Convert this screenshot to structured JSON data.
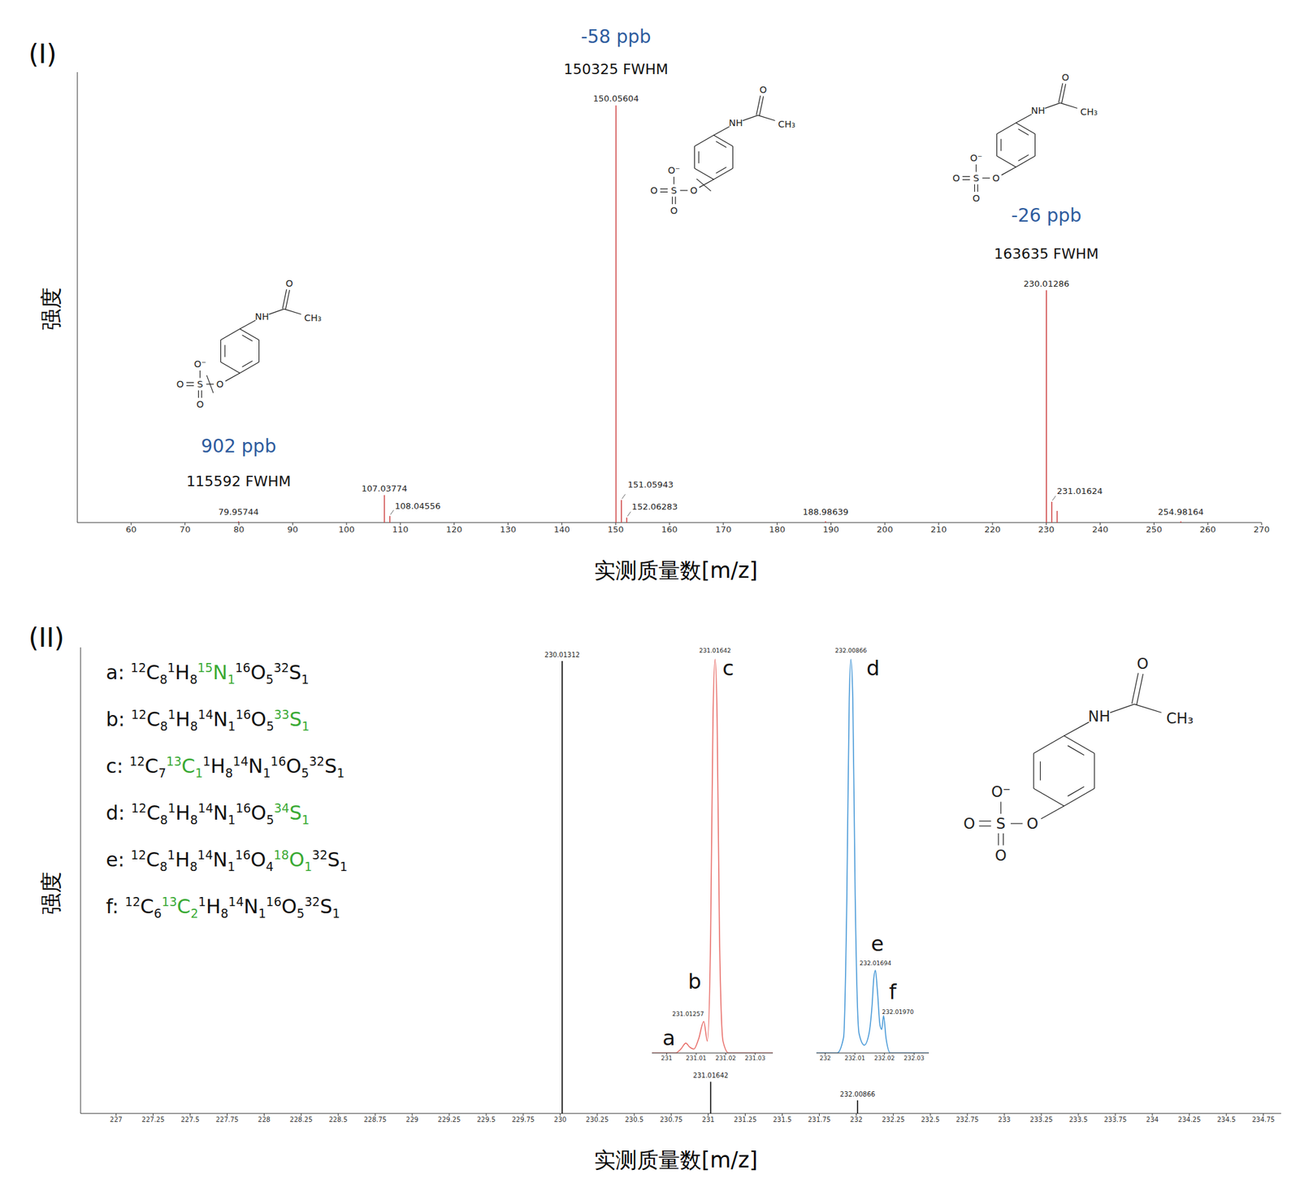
{
  "chart_data": [
    {
      "panel": "(I)",
      "type": "stick",
      "x_label": "实测质量数[m/z]",
      "y_label": "强度",
      "xlim": [
        50,
        270
      ],
      "xticks": [
        60,
        70,
        80,
        90,
        100,
        110,
        120,
        130,
        140,
        150,
        160,
        170,
        180,
        190,
        200,
        210,
        220,
        230,
        240,
        250,
        260,
        270
      ],
      "ylim": [
        0,
        108
      ],
      "tick_labels": "x",
      "color": "#d04a4a",
      "data_labels": true,
      "x": [
        79.95744,
        107.03774,
        108.04556,
        150.05604,
        151.05943,
        152.06283,
        188.98639,
        230.01286,
        231.01624,
        232.009,
        254.98164
      ],
      "values": [
        0.3,
        6.6,
        1.6,
        100,
        5.4,
        1.2,
        0.3,
        55.7,
        5.0,
        2.8,
        0.3
      ],
      "labels": [
        "79.95744",
        "107.03774",
        "108.04556",
        "150.05604",
        "151.05943",
        "152.06283",
        "188.98639",
        "230.01286",
        "231.01624",
        null,
        "254.98164"
      ],
      "annotations": [
        {
          "x": 150.05604,
          "error": "-58 ppb",
          "resolution": "150325 FWHM"
        },
        {
          "x": 230.01286,
          "error": "-26 ppb",
          "resolution": "163635 FWHM"
        },
        {
          "x": 79.95744,
          "error": "902 ppb",
          "resolution": "115592 FWHM"
        }
      ]
    },
    {
      "panel": "(II)",
      "type": "stick",
      "x_label": "实测质量数[m/z]",
      "y_label": "强度",
      "xlim": [
        226.76,
        234.87
      ],
      "xticks": [
        227,
        227.25,
        227.5,
        227.75,
        228,
        228.25,
        228.5,
        228.75,
        229,
        229.25,
        229.5,
        229.75,
        230,
        230.25,
        230.5,
        230.75,
        231,
        231.25,
        231.5,
        231.75,
        232,
        232.25,
        232.5,
        232.75,
        233,
        233.25,
        233.5,
        233.75,
        234,
        234.25,
        234.5,
        234.75
      ],
      "ylim": [
        0,
        103
      ],
      "tick_labels": "x",
      "color": "#000000",
      "data_labels": true,
      "x": [
        230.01312,
        231.01642,
        232.00866
      ],
      "values": [
        100,
        7.0,
        2.9
      ],
      "labels": [
        "230.01312",
        "231.01642",
        "232.00866"
      ]
    },
    {
      "type": "line",
      "color": "#e8706b",
      "xlim": [
        230.995,
        231.036
      ],
      "xticks": [
        231,
        231.01,
        231.02,
        231.03
      ],
      "ylim": [
        0,
        104
      ],
      "tick_labels": "x",
      "x": [
        230.995,
        231.003,
        231.0048,
        231.0065,
        231.0078,
        231.0092,
        231.0108,
        231.01257,
        231.0138,
        231.0149,
        231.0157,
        231.01642,
        231.0171,
        231.0179,
        231.0191,
        231.021,
        231.036
      ],
      "values": [
        0,
        0,
        1,
        2.5,
        1.5,
        1,
        3.5,
        8,
        3,
        30,
        85,
        100,
        85,
        30,
        3,
        0,
        0
      ],
      "peaks": [
        {
          "name": "a",
          "x": 231.0065,
          "value": 2.5
        },
        {
          "name": "b",
          "x": 231.01257,
          "value": 8,
          "label": "231.01257"
        },
        {
          "name": "c",
          "x": 231.01642,
          "value": 100,
          "label": "231.01642"
        }
      ]
    },
    {
      "type": "line",
      "color": "#4a9ad8",
      "xlim": [
        231.997,
        232.035
      ],
      "xticks": [
        232,
        232.01,
        232.02,
        232.03
      ],
      "ylim": [
        0,
        104
      ],
      "tick_labels": "x",
      "x": [
        231.997,
        232.004,
        232.0062,
        232.0073,
        232.0081,
        232.00866,
        232.0093,
        232.0101,
        232.0114,
        232.0132,
        232.0148,
        232.0158,
        232.0164,
        232.01694,
        232.0176,
        232.0185,
        232.0191,
        232.0197,
        232.0205,
        232.022,
        232.035
      ],
      "values": [
        0,
        0,
        4,
        40,
        90,
        100,
        90,
        40,
        5,
        2,
        5,
        12,
        19,
        21,
        16,
        7,
        6,
        9.5,
        4,
        0,
        0
      ],
      "peaks": [
        {
          "name": "d",
          "x": 232.00866,
          "value": 100,
          "label": "232.00866"
        },
        {
          "name": "e",
          "x": 232.01694,
          "value": 21,
          "label": "232.01694"
        },
        {
          "name": "f",
          "x": 232.0197,
          "value": 9.5,
          "label": "232.01970"
        }
      ]
    }
  ],
  "formulas": [
    {
      "label": "a:",
      "parts": [
        {
          "iso": "12",
          "el": "C",
          "n": "8"
        },
        {
          "iso": "1",
          "el": "H",
          "n": "8"
        },
        {
          "iso": "15",
          "el": "N",
          "n": "1",
          "color": "#3aaa35"
        },
        {
          "iso": "16",
          "el": "O",
          "n": "5"
        },
        {
          "iso": "32",
          "el": "S",
          "n": "1"
        }
      ]
    },
    {
      "label": "b:",
      "parts": [
        {
          "iso": "12",
          "el": "C",
          "n": "8"
        },
        {
          "iso": "1",
          "el": "H",
          "n": "8"
        },
        {
          "iso": "14",
          "el": "N",
          "n": "1"
        },
        {
          "iso": "16",
          "el": "O",
          "n": "5"
        },
        {
          "iso": "33",
          "el": "S",
          "n": "1",
          "color": "#3aaa35"
        }
      ]
    },
    {
      "label": "c:",
      "parts": [
        {
          "iso": "12",
          "el": "C",
          "n": "7"
        },
        {
          "iso": "13",
          "el": "C",
          "n": "1",
          "color": "#3aaa35"
        },
        {
          "iso": "1",
          "el": "H",
          "n": "8"
        },
        {
          "iso": "14",
          "el": "N",
          "n": "1"
        },
        {
          "iso": "16",
          "el": "O",
          "n": "5"
        },
        {
          "iso": "32",
          "el": "S",
          "n": "1"
        }
      ]
    },
    {
      "label": "d:",
      "parts": [
        {
          "iso": "12",
          "el": "C",
          "n": "8"
        },
        {
          "iso": "1",
          "el": "H",
          "n": "8"
        },
        {
          "iso": "14",
          "el": "N",
          "n": "1"
        },
        {
          "iso": "16",
          "el": "O",
          "n": "5"
        },
        {
          "iso": "34",
          "el": "S",
          "n": "1",
          "color": "#3aaa35"
        }
      ]
    },
    {
      "label": "e:",
      "parts": [
        {
          "iso": "12",
          "el": "C",
          "n": "8"
        },
        {
          "iso": "1",
          "el": "H",
          "n": "8"
        },
        {
          "iso": "14",
          "el": "N",
          "n": "1"
        },
        {
          "iso": "16",
          "el": "O",
          "n": "4"
        },
        {
          "iso": "18",
          "el": "O",
          "n": "1",
          "color": "#3aaa35"
        },
        {
          "iso": "32",
          "el": "S",
          "n": "1"
        }
      ]
    },
    {
      "label": "f:",
      "parts": [
        {
          "iso": "12",
          "el": "C",
          "n": "6"
        },
        {
          "iso": "13",
          "el": "C",
          "n": "2",
          "color": "#3aaa35"
        },
        {
          "iso": "1",
          "el": "H",
          "n": "8"
        },
        {
          "iso": "14",
          "el": "N",
          "n": "1"
        },
        {
          "iso": "16",
          "el": "O",
          "n": "5"
        },
        {
          "iso": "32",
          "el": "S",
          "n": "1"
        }
      ]
    }
  ],
  "structure": {
    "amide": "NH",
    "carbonyl": "O",
    "methyl": "CH₃",
    "anion": "O⁻",
    "sulfur": "S",
    "ester": "O",
    "oxo": "O"
  }
}
